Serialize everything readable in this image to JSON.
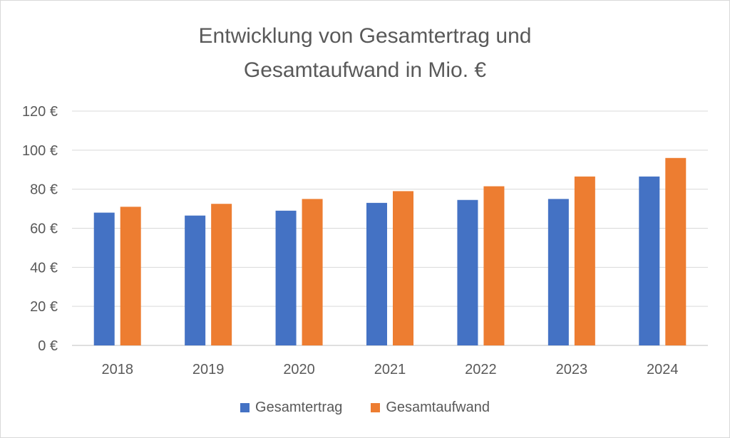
{
  "chart_data": {
    "type": "bar",
    "title_lines": [
      "Entwicklung von Gesamtertrag und",
      "Gesamtaufwand in Mio. €"
    ],
    "categories": [
      "2018",
      "2019",
      "2020",
      "2021",
      "2022",
      "2023",
      "2024"
    ],
    "series": [
      {
        "name": "Gesamtertrag",
        "color": "#4472c4",
        "values": [
          68,
          66.5,
          69,
          73,
          74.5,
          75,
          86.5
        ]
      },
      {
        "name": "Gesamtaufwand",
        "color": "#ed7d31",
        "values": [
          71,
          72.5,
          75,
          79,
          81.5,
          86.5,
          96
        ]
      }
    ],
    "ylim": [
      0,
      120
    ],
    "yticks": [
      0,
      20,
      40,
      60,
      80,
      100,
      120
    ],
    "ytick_labels": [
      "0 €",
      "20 €",
      "40 €",
      "60 €",
      "80 €",
      "100 €",
      "120 €"
    ],
    "xlabel": "",
    "ylabel": "",
    "grid": true,
    "legend_position": "bottom"
  }
}
